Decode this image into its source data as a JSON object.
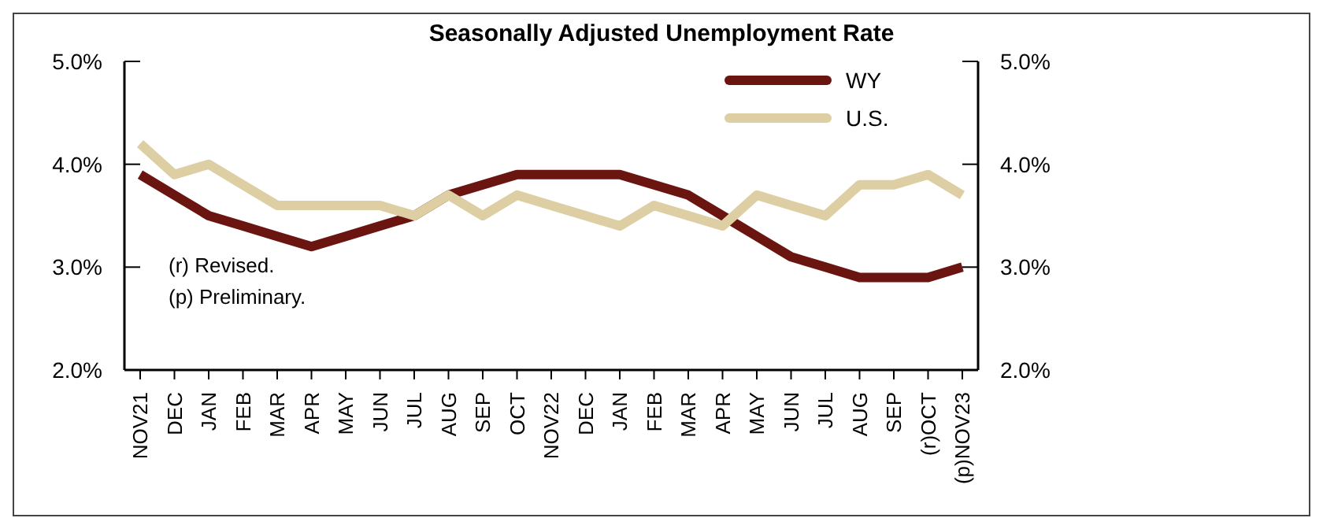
{
  "chart_data": {
    "type": "line",
    "title": "Seasonally Adjusted Unemployment Rate",
    "categories": [
      "NOV21",
      "DEC",
      "JAN",
      "FEB",
      "MAR",
      "APR",
      "MAY",
      "JUN",
      "JUL",
      "AUG",
      "SEP",
      "OCT",
      "NOV22",
      "DEC",
      "JAN",
      "FEB",
      "MAR",
      "APR",
      "MAY",
      "JUN",
      "JUL",
      "AUG",
      "SEP",
      "(r)OCT",
      "(p)NOV23"
    ],
    "series": [
      {
        "name": "WY",
        "color": "#6b1510",
        "values": [
          3.9,
          3.7,
          3.5,
          3.4,
          3.3,
          3.2,
          3.3,
          3.4,
          3.5,
          3.7,
          3.8,
          3.9,
          3.9,
          3.9,
          3.9,
          3.8,
          3.7,
          3.5,
          3.3,
          3.1,
          3.0,
          2.9,
          2.9,
          2.9,
          3.0
        ]
      },
      {
        "name": "U.S.",
        "color": "#ddcfa3",
        "values": [
          4.2,
          3.9,
          4.0,
          3.8,
          3.6,
          3.6,
          3.6,
          3.6,
          3.5,
          3.7,
          3.5,
          3.7,
          3.6,
          3.5,
          3.4,
          3.6,
          3.5,
          3.4,
          3.7,
          3.6,
          3.5,
          3.8,
          3.8,
          3.9,
          3.7
        ]
      }
    ],
    "ylim": [
      2,
      5
    ],
    "yticks": [
      {
        "value": 2,
        "label": "2.0%"
      },
      {
        "value": 3,
        "label": "3.0%"
      },
      {
        "value": 4,
        "label": "4.0%"
      },
      {
        "value": 5,
        "label": "5.0%"
      }
    ],
    "y2lim": [
      2,
      5
    ],
    "y2ticks": [
      {
        "value": 2,
        "label": "2.0%"
      },
      {
        "value": 3,
        "label": "3.0%"
      },
      {
        "value": 4,
        "label": "4.0%"
      },
      {
        "value": 5,
        "label": "5.0%"
      }
    ],
    "annotations": [
      "(r) Revised.",
      "(p) Preliminary."
    ],
    "legend": "top right",
    "grid": false,
    "marker": "none",
    "line_style": "solid"
  }
}
